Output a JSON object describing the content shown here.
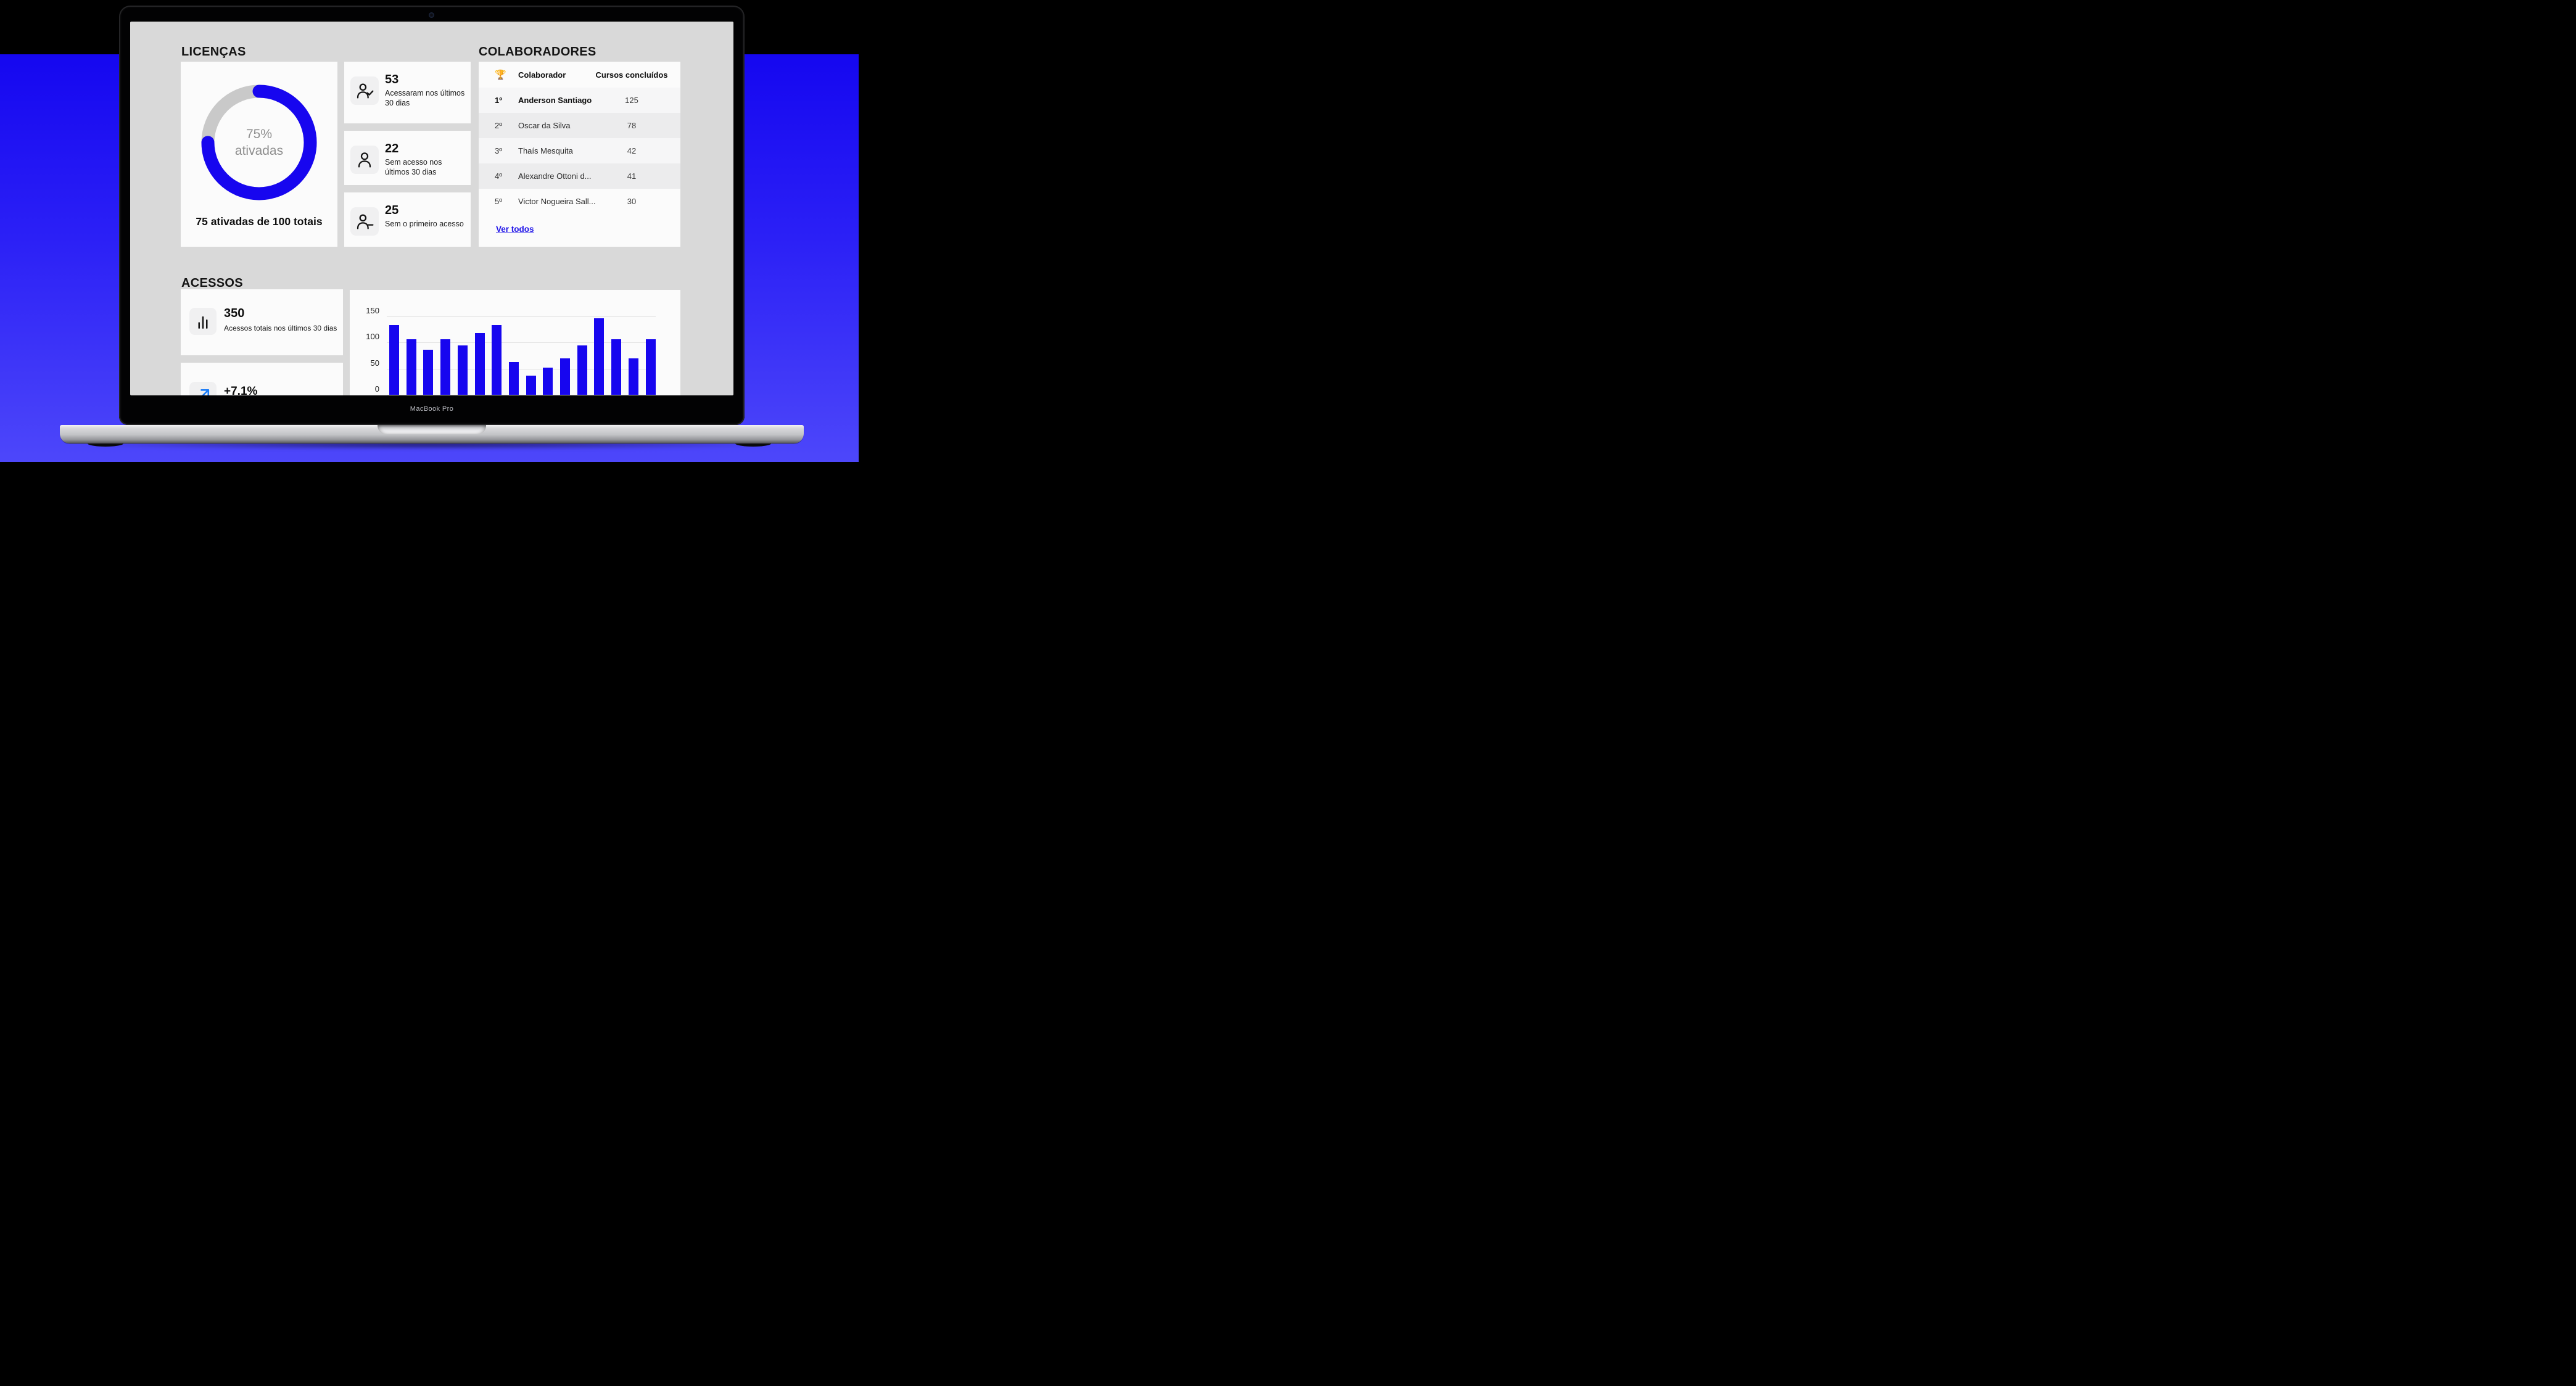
{
  "device": {
    "label": "MacBook Pro"
  },
  "colors": {
    "accent_blue": "#1706ef",
    "growth_blue": "#1a7cf7",
    "link_blue": "#1c10e8",
    "background_blue_top": "#1507f0",
    "background_blue_bottom": "#4d47fa",
    "dashboard_bg": "#d9d9d9",
    "card_bg": "#fbfbfb"
  },
  "licencas": {
    "title": "LICENÇAS",
    "stats": [
      {
        "value": "53",
        "label": "Acessaram nos últimos 30 dias",
        "icon": "user-check-icon"
      },
      {
        "value": "22",
        "label": "Sem acesso nos últimos 30 dias",
        "icon": "user-icon"
      },
      {
        "value": "25",
        "label": "Sem o primeiro acesso",
        "icon": "user-minus-icon"
      }
    ]
  },
  "colaboradores": {
    "title": "COLABORADORES",
    "header": {
      "trophy_icon": "🏆",
      "name_col": "Colaborador",
      "courses_col": "Cursos concluídos"
    },
    "rows": [
      {
        "rank": "1º",
        "name": "Anderson Santiago",
        "courses": "125"
      },
      {
        "rank": "2º",
        "name": "Oscar da Silva",
        "courses": "78"
      },
      {
        "rank": "3º",
        "name": "Thaís Mesquita",
        "courses": "42"
      },
      {
        "rank": "4º",
        "name": "Alexandre Ottoni d...",
        "courses": "41"
      },
      {
        "rank": "5º",
        "name": "Victor Nogueira Sall...",
        "courses": "30"
      }
    ],
    "link_label": "Ver todos"
  },
  "acessos": {
    "title": "ACESSOS",
    "total": {
      "value": "350",
      "label": "Acessos totais nos últimos 30 dias",
      "icon": "bar-chart-icon"
    },
    "growth": {
      "value": "+7.1%",
      "icon": "trend-up-icon"
    }
  },
  "chart_data": [
    {
      "type": "donut",
      "values": [
        {
          "label": "ativadas",
          "value": 75
        },
        {
          "label": "restantes",
          "value": 25
        }
      ],
      "total": 100,
      "center_text": {
        "line1": "75%",
        "line2": "ativadas"
      },
      "caption": "75 ativadas de 100 totais",
      "colors": {
        "active": "#1706ef",
        "track": "#c9c9c9"
      },
      "start_angle": "top",
      "direction": "clockwise"
    },
    {
      "type": "bar",
      "values": [
        134,
        106,
        86,
        106,
        95,
        118,
        134,
        63,
        37,
        52,
        70,
        95,
        147,
        106,
        70,
        106
      ],
      "categories": [],
      "yticks": [
        0,
        50,
        100,
        150
      ],
      "ylim": [
        0,
        150
      ],
      "bar_color": "#1706ef",
      "grid": true,
      "x_axis_labels_visible": false
    }
  ]
}
